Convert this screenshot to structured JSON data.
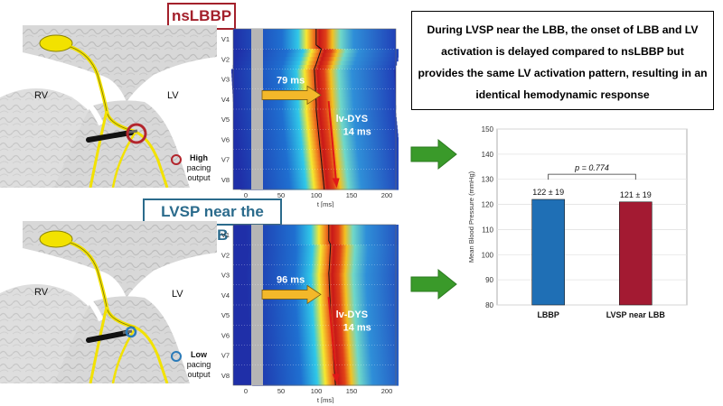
{
  "top_panel": {
    "title": "nsLBBP",
    "title_color": "#a3202b",
    "rv_label": "RV",
    "lv_label": "LV",
    "pacing_level": "High",
    "pacing_rest": "pacing\noutput",
    "ring_color": "#b3262d",
    "delay_label": "79 ms",
    "dys_label": "lv-DYS",
    "dys_value": "14 ms"
  },
  "bottom_panel": {
    "title": "LVSP near the LBB",
    "title_color": "#2b6b8c",
    "rv_label": "RV",
    "lv_label": "LV",
    "pacing_level": "Low",
    "pacing_rest": "pacing\noutput",
    "ring_color": "#2b7bb9",
    "delay_label": "96 ms",
    "dys_label": "lv-DYS",
    "dys_value": "14 ms"
  },
  "heatmap_axes": {
    "leads": [
      "V1",
      "V2",
      "V3",
      "V4",
      "V5",
      "V6",
      "V7",
      "V8"
    ],
    "x_ticks": [
      "0",
      "50",
      "100",
      "150",
      "200"
    ],
    "x_label": "t [ms]"
  },
  "summary_text": "During LVSP near the LBB, the onset of LBB and LV activation is delayed compared to nsLBBP but provides the same LV activation pattern, resulting in an identical hemodynamic response",
  "arrow_color": "#3a9a2a",
  "chart_data": {
    "type": "bar",
    "categories": [
      "LBBP",
      "LVSP near LBB"
    ],
    "values": [
      122,
      121
    ],
    "errors": [
      19,
      19
    ],
    "value_labels": [
      "122 ± 19",
      "121 ± 19"
    ],
    "colors": [
      "#1f6fb5",
      "#a31a32"
    ],
    "ylabel": "Mean Blood Pressure (mmHg)",
    "ylim": [
      80,
      150
    ],
    "yticks": [
      80,
      90,
      100,
      110,
      120,
      130,
      140,
      150
    ],
    "grid": true,
    "annotation": "p = 0.774"
  }
}
